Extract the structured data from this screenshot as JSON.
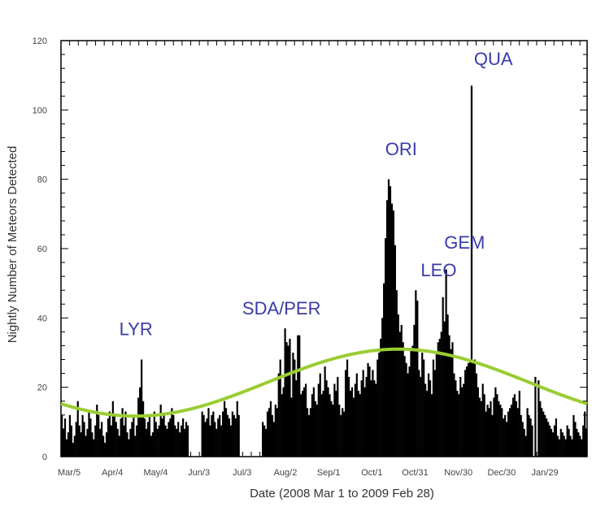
{
  "chart_data": {
    "type": "bar",
    "xlabel": "Date (2008 Mar 1 to 2009 Feb 28)",
    "ylabel": "Nightly Number of Meteors Detected",
    "ylim": [
      0,
      120
    ],
    "yticks": [
      "0",
      "20",
      "40",
      "60",
      "80",
      "100",
      "120"
    ],
    "xlim_days": [
      0,
      365
    ],
    "xticks": [
      {
        "day": 4,
        "label": "Mar/5"
      },
      {
        "day": 34,
        "label": "Apr/4"
      },
      {
        "day": 64,
        "label": "May/4"
      },
      {
        "day": 94,
        "label": "Jun/3"
      },
      {
        "day": 124,
        "label": "Jul/3"
      },
      {
        "day": 154,
        "label": "Aug/2"
      },
      {
        "day": 184,
        "label": "Sep/1"
      },
      {
        "day": 214,
        "label": "Oct/1"
      },
      {
        "day": 244,
        "label": "Oct/31"
      },
      {
        "day": 274,
        "label": "Nov/30"
      },
      {
        "day": 304,
        "label": "Dec/30"
      },
      {
        "day": 334,
        "label": "Jan/29"
      }
    ],
    "bar_color": "#000000",
    "curve_color": "#9acd32",
    "series": [
      {
        "values": [
          12,
          8,
          11,
          5,
          7,
          12,
          9,
          4,
          6,
          10,
          16,
          9,
          7,
          12,
          10,
          6,
          8,
          13,
          11,
          7,
          5,
          9,
          15,
          12,
          8,
          10,
          6,
          4,
          7,
          11,
          13,
          9,
          16,
          12,
          10,
          8,
          6,
          11,
          14,
          9,
          13,
          7,
          5,
          8,
          10,
          12,
          6,
          9,
          17,
          20,
          28,
          16,
          11,
          8,
          10,
          12,
          6,
          7,
          13,
          10,
          8,
          9,
          15,
          11,
          12,
          9,
          8,
          10,
          11,
          14,
          12,
          9,
          8,
          10,
          7,
          9,
          11,
          8,
          10,
          9,
          0,
          0,
          0,
          0,
          0,
          0,
          0,
          0,
          13,
          12,
          10,
          11,
          14,
          9,
          12,
          13,
          10,
          8,
          11,
          12,
          9,
          13,
          16,
          14,
          12,
          11,
          9,
          13,
          12,
          11,
          16,
          12,
          0,
          0,
          0,
          0,
          0,
          0,
          0,
          0,
          0,
          0,
          0,
          0,
          0,
          0,
          10,
          9,
          8,
          13,
          14,
          16,
          12,
          10,
          15,
          14,
          24,
          28,
          18,
          20,
          37,
          33,
          32,
          34,
          17,
          30,
          28,
          22,
          35,
          35,
          18,
          19,
          20,
          21,
          14,
          12,
          14,
          18,
          20,
          16,
          15,
          21,
          24,
          18,
          19,
          26,
          22,
          20,
          18,
          16,
          15,
          21,
          19,
          23,
          15,
          12,
          14,
          13,
          25,
          28,
          23,
          19,
          20,
          17,
          21,
          24,
          19,
          18,
          22,
          25,
          20,
          23,
          27,
          26,
          22,
          25,
          22,
          21,
          28,
          30,
          34,
          40,
          50,
          63,
          74,
          80,
          78,
          73,
          71,
          61,
          48,
          41,
          36,
          38,
          33,
          29,
          27,
          24,
          26,
          31,
          32,
          38,
          48,
          45,
          25,
          23,
          30,
          28,
          21,
          19,
          24,
          22,
          18,
          28,
          25,
          30,
          33,
          34,
          36,
          46,
          39,
          54,
          41,
          35,
          31,
          33,
          24,
          22,
          19,
          18,
          23,
          20,
          21,
          25,
          26,
          27,
          28,
          107,
          27,
          28,
          24,
          20,
          17,
          16,
          21,
          18,
          13,
          15,
          14,
          16,
          12,
          17,
          20,
          18,
          16,
          15,
          14,
          11,
          12,
          10,
          13,
          14,
          15,
          17,
          18,
          16,
          14,
          19,
          12,
          10,
          8,
          6,
          14,
          12,
          11,
          9,
          0,
          23,
          0,
          22,
          16,
          14,
          13,
          12,
          11,
          10,
          9,
          8,
          7,
          9,
          11,
          6,
          5,
          8,
          7,
          6,
          5,
          9,
          8,
          6,
          5,
          12,
          10,
          8,
          7,
          6,
          5,
          9,
          13,
          8
        ]
      }
    ],
    "trend": {
      "baseline": 21.35,
      "amplitude": 9.65,
      "period_days": 365,
      "peak_day": 234
    },
    "annotations": [
      {
        "text": "LYR",
        "day": 52,
        "value": 35
      },
      {
        "text": "SDA/PER",
        "day": 153,
        "value": 41
      },
      {
        "text": "ORI",
        "day": 236,
        "value": 87
      },
      {
        "text": "LEO",
        "day": 262,
        "value": 52
      },
      {
        "text": "GEM",
        "day": 280,
        "value": 60
      },
      {
        "text": "QUA",
        "day": 300,
        "value": 113
      }
    ]
  }
}
